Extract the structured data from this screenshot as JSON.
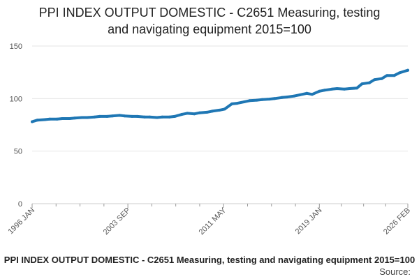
{
  "chart_data": {
    "type": "line",
    "title_lines": [
      "PPI INDEX OUTPUT DOMESTIC - C2651 Measuring, testing",
      "and navigating equipment 2015=100"
    ],
    "caption": "PPI INDEX OUTPUT DOMESTIC - C2651 Measuring, testing and navigating equipment 2015=100",
    "source_label": "Source:",
    "xlabel": "",
    "ylabel": "",
    "ylim": [
      0,
      150
    ],
    "yticks": [
      0,
      50,
      100,
      150
    ],
    "ytick_labels": [
      "0",
      "50",
      "100",
      "150"
    ],
    "xlim": [
      "1996-01",
      "2026-02"
    ],
    "xticks": [
      "1996-01",
      "2003-09",
      "2011-05",
      "2019-01",
      "2026-02"
    ],
    "xtick_labels": [
      "1996 JAN",
      "2003 SEP",
      "2011 MAY",
      "2019 JAN",
      "2026 FEB"
    ],
    "grid": "horizontal",
    "legend": "none",
    "line_color": "#1f77b4",
    "series": [
      {
        "x": [
          "1996-01",
          "1996-06",
          "1997-01",
          "1997-06",
          "1998-01",
          "1998-06",
          "1999-01",
          "1999-06",
          "2000-01",
          "2000-06",
          "2001-01",
          "2001-06",
          "2002-01",
          "2002-06",
          "2003-01",
          "2003-06",
          "2004-01",
          "2004-06",
          "2005-01",
          "2005-06",
          "2006-01",
          "2006-06",
          "2007-01",
          "2007-06",
          "2008-01",
          "2008-06",
          "2009-01",
          "2009-06",
          "2010-01",
          "2010-06",
          "2011-01",
          "2011-06",
          "2012-01",
          "2012-06",
          "2013-01",
          "2013-06",
          "2014-01",
          "2014-06",
          "2015-01",
          "2015-06",
          "2016-01",
          "2016-06",
          "2017-01",
          "2017-06",
          "2018-01",
          "2018-06",
          "2019-01",
          "2019-06",
          "2020-01",
          "2020-06",
          "2021-01",
          "2021-06",
          "2022-01",
          "2022-06",
          "2023-01",
          "2023-06",
          "2024-01",
          "2024-06",
          "2025-01",
          "2025-06",
          "2026-02"
        ],
        "values": [
          78,
          79.5,
          80,
          80.5,
          80.5,
          81,
          81,
          81.5,
          82,
          82,
          82.5,
          83,
          83,
          83.5,
          84,
          83.5,
          83,
          83,
          82.5,
          82.5,
          82,
          82.5,
          82.5,
          83,
          85,
          86,
          85.5,
          86.5,
          87,
          88,
          89,
          90,
          95,
          95.5,
          97,
          98,
          98.5,
          99,
          99.5,
          100,
          101,
          101.5,
          102.5,
          103.5,
          105,
          104,
          107,
          108,
          109,
          109.5,
          109,
          109.5,
          110,
          114,
          115,
          118,
          119,
          122,
          122,
          124.5,
          127
        ]
      }
    ]
  }
}
